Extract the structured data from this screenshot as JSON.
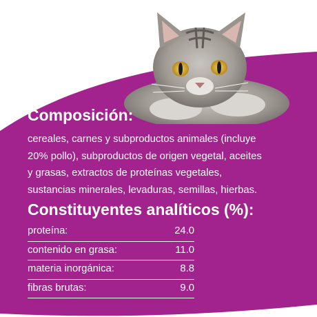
{
  "colors": {
    "brand_purple": "#a2238d",
    "text": "#ffffff",
    "background": "#ffffff"
  },
  "composition": {
    "title": "Composición:",
    "lines": [
      "cereales, carnes y subproductos animales (incluye",
      "20% pollo), subproductos de origen vegetal, aceites",
      "y grasas, extractos de proteínas vegetales,",
      "sustancias minerales, levaduras, semillas, hierbas."
    ]
  },
  "analysis": {
    "title": "Constituyentes analíticos (%):",
    "rows": [
      {
        "label": "proteína:",
        "value": "24.0"
      },
      {
        "label": "contenido en grasa:",
        "value": "11.0"
      },
      {
        "label": "materia inorgánica:",
        "value": "8.8"
      },
      {
        "label": "fibras brutas:",
        "value": "9.0"
      }
    ]
  },
  "image": {
    "subject": "tabby-cat-photo"
  }
}
